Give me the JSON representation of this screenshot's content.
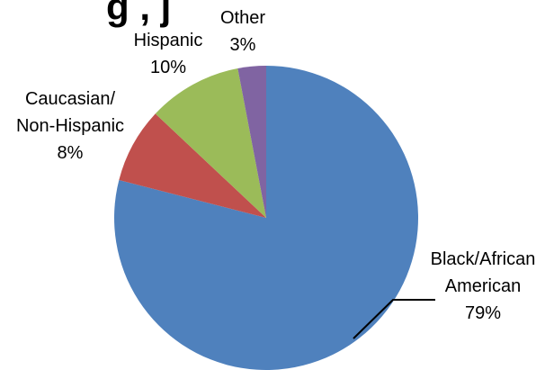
{
  "chart_data": {
    "type": "pie",
    "title_fragment": "g          , j",
    "slices": [
      {
        "name": "Black/African American",
        "value": 79,
        "label_lines": [
          "Black/African",
          "American",
          "79%"
        ],
        "color": "#4F81BD"
      },
      {
        "name": "Caucasian/ Non-Hispanic",
        "value": 8,
        "label_lines": [
          "Caucasian/",
          "Non-Hispanic",
          "8%"
        ],
        "color": "#C0504D"
      },
      {
        "name": "Hispanic",
        "value": 10,
        "label_lines": [
          "Hispanic",
          "10%"
        ],
        "color": "#9BBB59"
      },
      {
        "name": "Other",
        "value": 3,
        "label_lines": [
          "Other",
          "3%"
        ],
        "color": "#8064A2"
      }
    ],
    "start_direction": "12 o'clock",
    "slice_order": "clockwise",
    "legend": "none"
  }
}
